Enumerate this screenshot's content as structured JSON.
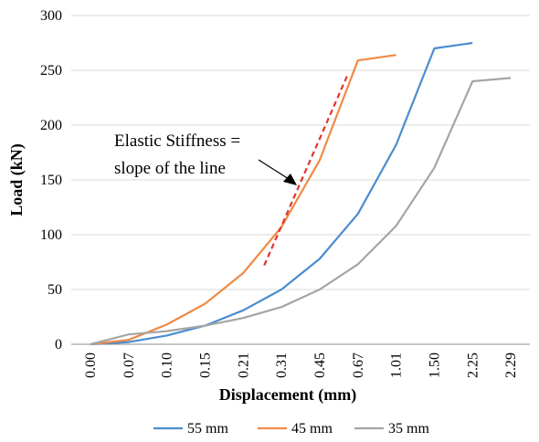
{
  "chart_data": {
    "type": "line",
    "title": "",
    "xlabel": "Displacement (mm)",
    "ylabel": "Load (kN)",
    "categories": [
      "0.00",
      "0.07",
      "0.10",
      "0.15",
      "0.21",
      "0.31",
      "0.45",
      "0.67",
      "1.01",
      "1.50",
      "2.25",
      "2.29"
    ],
    "ylim": [
      0,
      300
    ],
    "yticks": [
      "0",
      "50",
      "100",
      "150",
      "200",
      "250",
      "300"
    ],
    "grid": "horizontal",
    "legend_position": "bottom",
    "series": [
      {
        "name": "55 mm",
        "color": "#4A8DD0",
        "values": [
          0,
          2,
          8,
          17,
          31,
          50,
          78,
          119,
          182,
          270,
          275,
          null
        ]
      },
      {
        "name": "45 mm",
        "color": "#F08A45",
        "values": [
          0,
          4,
          18,
          37,
          65,
          107,
          168,
          259,
          264,
          null,
          null,
          null
        ]
      },
      {
        "name": "35 mm",
        "color": "#A5A5A5",
        "values": [
          0,
          9,
          12,
          17,
          24,
          34,
          50,
          73,
          108,
          161,
          240,
          243
        ]
      }
    ],
    "annotation": {
      "lines": [
        "Elastic Stiffness =",
        "slope of the line"
      ],
      "fit_line": {
        "color": "#E0342E",
        "from": [
          4.55,
          72
        ],
        "to": [
          6.72,
          245
        ]
      }
    }
  }
}
